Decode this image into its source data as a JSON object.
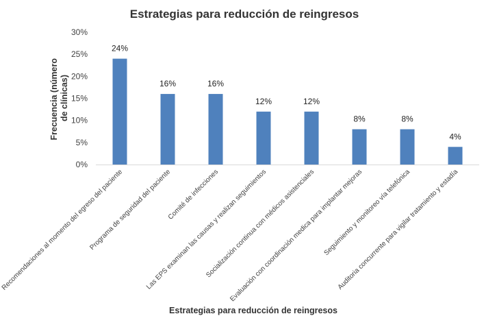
{
  "chart_data": {
    "type": "bar",
    "title": "Estrategias para reducción  de reingresos",
    "xlabel": "Estrategias para  reducción de reingresos",
    "ylabel_lines": [
      "Frecuencia (número",
      "de clínicas)"
    ],
    "categories": [
      "Recomendaciones al momento del egreso del paciente",
      "Programa de seguridad del paciente",
      "Comité de infecciones",
      "Las EPS examinan las causas y realizan seguimientos",
      "Socialización  continua con médicos asistenciales",
      "Evaluación con coordinación medica para implantar mejoras",
      "Seguimiento y monitoreo vía telefónica",
      "Auditoria concurrente para vigilar tratamiento y estadía"
    ],
    "values": [
      24,
      16,
      16,
      12,
      12,
      8,
      8,
      4
    ],
    "data_labels": [
      "24%",
      "16%",
      "16%",
      "12%",
      "12%",
      "8%",
      "8%",
      "4%"
    ],
    "yticks": [
      0,
      5,
      10,
      15,
      20,
      25,
      30
    ],
    "ytick_labels": [
      "0%",
      "5%",
      "10%",
      "15%",
      "20%",
      "25%",
      "30%"
    ],
    "ylim": [
      0,
      30
    ],
    "grid": false,
    "legend": "none",
    "bar_color": "#4f81bd"
  }
}
